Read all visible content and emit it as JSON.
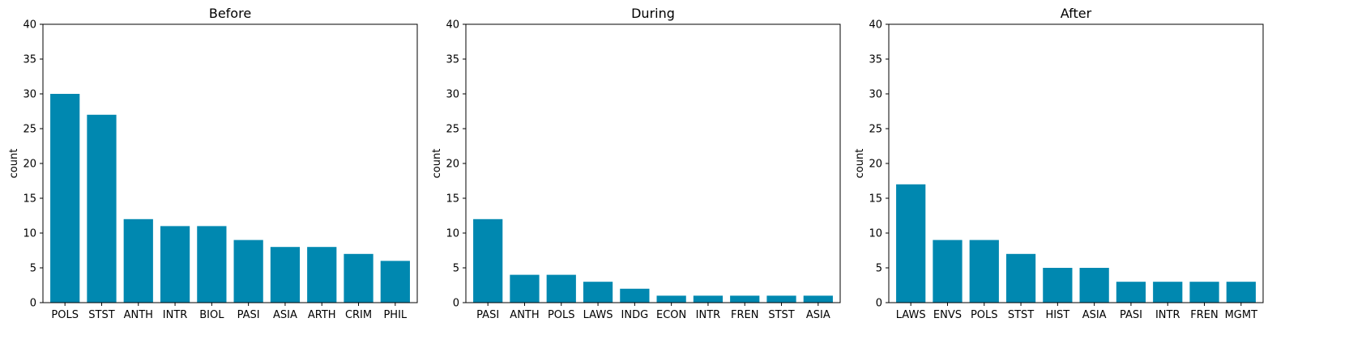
{
  "chart_data": [
    {
      "type": "bar",
      "title": "Before",
      "ylabel": "count",
      "xlabel": "",
      "ylim": [
        0,
        40
      ],
      "yticks": [
        0,
        5,
        10,
        15,
        20,
        25,
        30,
        35,
        40
      ],
      "color": "#0088b0",
      "categories": [
        "POLS",
        "STST",
        "ANTH",
        "INTR",
        "BIOL",
        "PASI",
        "ASIA",
        "ARTH",
        "CRIM",
        "PHIL"
      ],
      "values": [
        30,
        27,
        12,
        11,
        11,
        9,
        8,
        8,
        7,
        6
      ]
    },
    {
      "type": "bar",
      "title": "During",
      "ylabel": "count",
      "xlabel": "",
      "ylim": [
        0,
        40
      ],
      "yticks": [
        0,
        5,
        10,
        15,
        20,
        25,
        30,
        35,
        40
      ],
      "color": "#0088b0",
      "categories": [
        "PASI",
        "ANTH",
        "POLS",
        "LAWS",
        "INDG",
        "ECON",
        "INTR",
        "FREN",
        "STST",
        "ASIA"
      ],
      "values": [
        12,
        4,
        4,
        3,
        2,
        1,
        1,
        1,
        1,
        1
      ]
    },
    {
      "type": "bar",
      "title": "After",
      "ylabel": "count",
      "xlabel": "",
      "ylim": [
        0,
        40
      ],
      "yticks": [
        0,
        5,
        10,
        15,
        20,
        25,
        30,
        35,
        40
      ],
      "color": "#0088b0",
      "categories": [
        "LAWS",
        "ENVS",
        "POLS",
        "STST",
        "HIST",
        "ASIA",
        "PASI",
        "INTR",
        "FREN",
        "MGMT"
      ],
      "values": [
        17,
        9,
        9,
        7,
        5,
        5,
        3,
        3,
        3,
        3
      ]
    }
  ]
}
